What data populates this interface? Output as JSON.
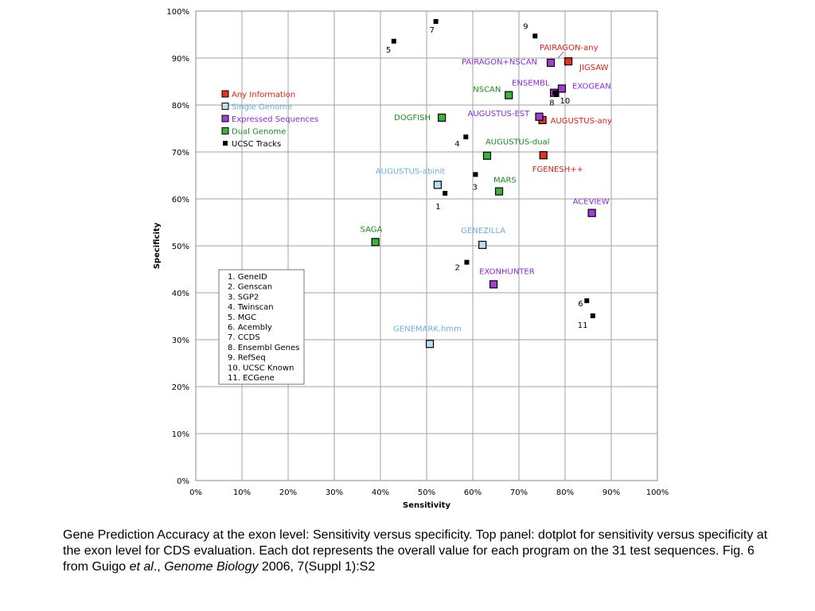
{
  "chart_data": {
    "type": "scatter",
    "title": "",
    "xlabel": "Sensitivity",
    "ylabel": "Specificity",
    "xlim": [
      0,
      100
    ],
    "ylim": [
      0,
      100
    ],
    "x_ticks": [
      "0%",
      "10%",
      "20%",
      "30%",
      "40%",
      "50%",
      "60%",
      "70%",
      "80%",
      "90%",
      "100%"
    ],
    "y_ticks": [
      "0%",
      "10%",
      "20%",
      "30%",
      "40%",
      "50%",
      "60%",
      "70%",
      "80%",
      "90%",
      "100%"
    ],
    "grid": true,
    "legend_position": "upper-left",
    "colors": {
      "any_information": "#e8321a",
      "single_genome": "#b7e0f0",
      "expressed_sequences": "#a23fd6",
      "dual_genome": "#3db33d",
      "ucsc_tracks": "#000000",
      "label_red": "#e02010",
      "label_blue": "#6ab0e0",
      "label_purple": "#8a2be2",
      "label_green": "#1c8c1c",
      "label_black": "#000000"
    },
    "legend": [
      {
        "name": "Any Information",
        "group": "any_information"
      },
      {
        "name": "Single Genome",
        "group": "single_genome"
      },
      {
        "name": "Expressed Sequences",
        "group": "expressed_sequences"
      },
      {
        "name": "Dual Genome",
        "group": "dual_genome"
      },
      {
        "name": "UCSC Tracks",
        "group": "ucsc_tracks"
      }
    ],
    "points": [
      {
        "label": "PAIRAGON-any",
        "group": "any_information",
        "x": 80.7,
        "y": 89.3
      },
      {
        "label": "JIGSAW",
        "group": "any_information",
        "x": 80.7,
        "y": 89.3
      },
      {
        "label": "AUGUSTUS-any",
        "group": "any_information",
        "x": 75.1,
        "y": 76.8
      },
      {
        "label": "FGENESH++",
        "group": "any_information",
        "x": 75.3,
        "y": 69.3
      },
      {
        "label": "AUGUSTUS-abinit",
        "group": "single_genome",
        "x": 52.4,
        "y": 63.0
      },
      {
        "label": "GENEZILLA",
        "group": "single_genome",
        "x": 62.1,
        "y": 50.2
      },
      {
        "label": "GENEMARK.hmm",
        "group": "single_genome",
        "x": 50.7,
        "y": 29.1
      },
      {
        "label": "PAIRAGON+NSCAN",
        "group": "expressed_sequences",
        "x": 76.9,
        "y": 89.0
      },
      {
        "label": "ENSEMBL",
        "group": "expressed_sequences",
        "x": 77.6,
        "y": 82.6
      },
      {
        "label": "EXOGEAN",
        "group": "expressed_sequences",
        "x": 79.3,
        "y": 83.5
      },
      {
        "label": "AUGUSTUS-EST",
        "group": "expressed_sequences",
        "x": 74.4,
        "y": 77.5
      },
      {
        "label": "ACEVIEW",
        "group": "expressed_sequences",
        "x": 85.8,
        "y": 57.0
      },
      {
        "label": "EXONHUNTER",
        "group": "expressed_sequences",
        "x": 64.5,
        "y": 41.8
      },
      {
        "label": "NSCAN",
        "group": "dual_genome",
        "x": 67.8,
        "y": 82.1
      },
      {
        "label": "DOGFISH",
        "group": "dual_genome",
        "x": 53.3,
        "y": 77.3
      },
      {
        "label": "AUGUSTUS-dual",
        "group": "dual_genome",
        "x": 63.1,
        "y": 69.2
      },
      {
        "label": "MARS",
        "group": "dual_genome",
        "x": 65.7,
        "y": 61.6
      },
      {
        "label": "SAGA",
        "group": "dual_genome",
        "x": 38.9,
        "y": 50.8
      },
      {
        "label": "1",
        "group": "ucsc_tracks",
        "x": 54.0,
        "y": 61.2
      },
      {
        "label": "2",
        "group": "ucsc_tracks",
        "x": 58.7,
        "y": 46.5
      },
      {
        "label": "3",
        "group": "ucsc_tracks",
        "x": 60.6,
        "y": 65.2
      },
      {
        "label": "4",
        "group": "ucsc_tracks",
        "x": 58.5,
        "y": 73.2
      },
      {
        "label": "5",
        "group": "ucsc_tracks",
        "x": 42.9,
        "y": 93.6
      },
      {
        "label": "6",
        "group": "ucsc_tracks",
        "x": 84.7,
        "y": 38.3
      },
      {
        "label": "7",
        "group": "ucsc_tracks",
        "x": 52.0,
        "y": 97.8
      },
      {
        "label": "8",
        "group": "ucsc_tracks",
        "x": 77.8,
        "y": 82.6
      },
      {
        "label": "9",
        "group": "ucsc_tracks",
        "x": 73.5,
        "y": 94.7
      },
      {
        "label": "10",
        "group": "ucsc_tracks",
        "x": 78.2,
        "y": 82.2
      },
      {
        "label": "11",
        "group": "ucsc_tracks",
        "x": 86.0,
        "y": 35.1
      }
    ],
    "key_box": [
      "1. GeneID",
      "2. Genscan",
      "3. SGP2",
      "4. Twinscan",
      "5. MGC",
      "6. Acembly",
      "7. CCDS",
      "8. Ensembl Genes",
      "9. RefSeq",
      "10. UCSC Known",
      "11. ECGene"
    ]
  },
  "caption": {
    "part1": "Gene Prediction Accuracy at the exon level: Sensitivity versus specificity. Top panel: dotplot for sensitivity versus specificity at the exon level for CDS evaluation. Each dot represents the overall value for each program on the 31 test sequences.  Fig. 6 from Guigo ",
    "etal": "et al",
    "part2": "., ",
    "journal": "Genome Biology",
    "part3": " 2006, 7(Suppl 1):S2"
  }
}
